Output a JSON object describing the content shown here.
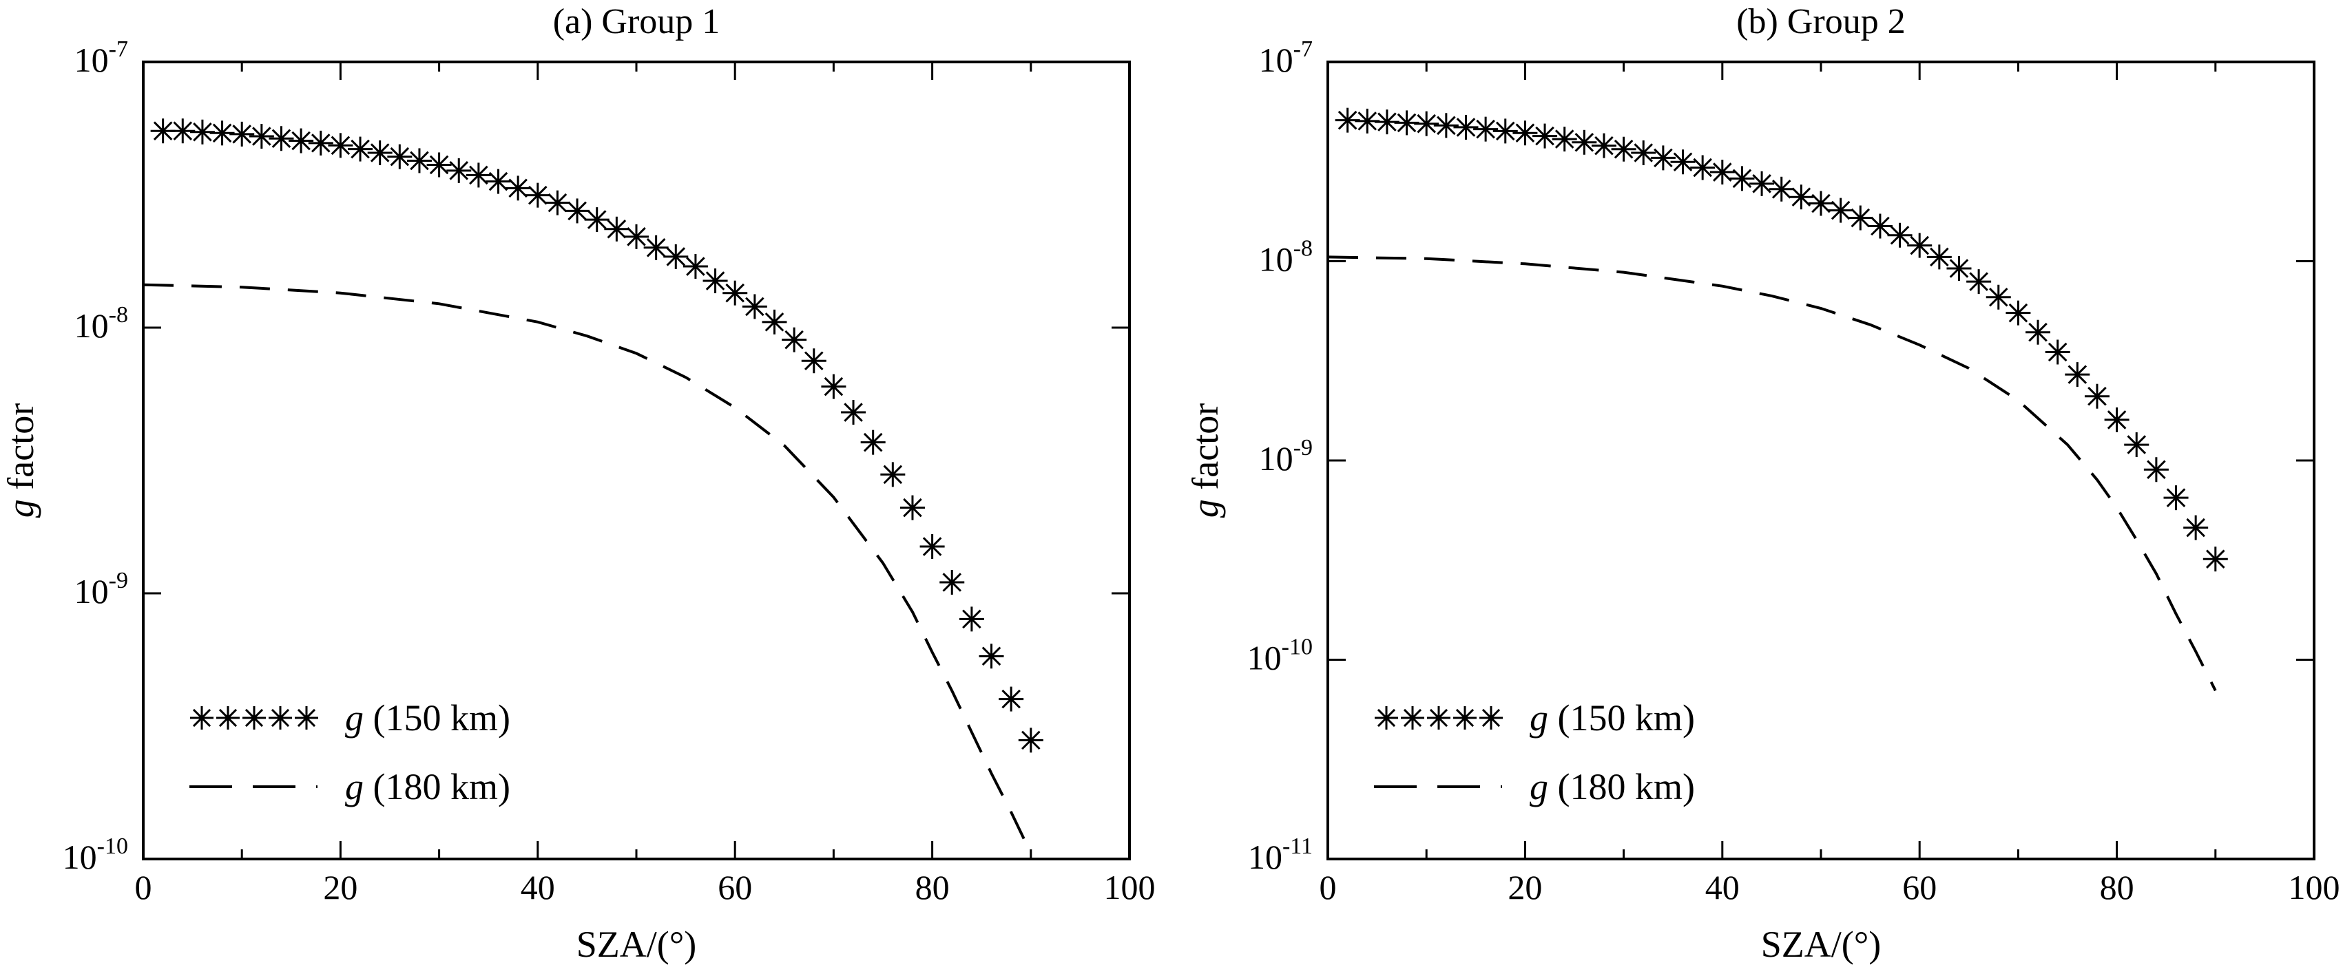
{
  "chart_data": [
    {
      "type": "scatter",
      "title": "(a) Group 1",
      "xlabel": "SZA/(°)",
      "ylabel_var": "g",
      "ylabel_rest": " factor",
      "xlim": [
        0,
        100
      ],
      "ylim": [
        1e-10,
        1e-07
      ],
      "yscale": "log",
      "grid": false,
      "legend_position": "bottom-left",
      "x_ticks": [
        "0",
        "20",
        "40",
        "60",
        "80",
        "100"
      ],
      "y_ticks": [
        {
          "base": "10",
          "exp": "-10"
        },
        {
          "base": "10",
          "exp": "-9"
        },
        {
          "base": "10",
          "exp": "-8"
        },
        {
          "base": "10",
          "exp": "-7"
        }
      ],
      "series": [
        {
          "name_var": "g",
          "name_rest": " (150 km)",
          "style": "asterisk",
          "x": [
            2,
            4,
            6,
            8,
            10,
            12,
            14,
            16,
            18,
            20,
            22,
            24,
            26,
            28,
            30,
            32,
            34,
            36,
            38,
            40,
            42,
            44,
            46,
            48,
            50,
            52,
            54,
            56,
            58,
            60,
            62,
            64,
            66,
            68,
            70,
            72,
            74,
            76,
            78,
            80,
            82,
            84,
            86,
            88,
            90
          ],
          "y": [
            5.5e-08,
            5.5e-08,
            5.45e-08,
            5.4e-08,
            5.35e-08,
            5.25e-08,
            5.15e-08,
            5.05e-08,
            4.95e-08,
            4.85e-08,
            4.7e-08,
            4.55e-08,
            4.4e-08,
            4.25e-08,
            4.1e-08,
            3.9e-08,
            3.75e-08,
            3.55e-08,
            3.35e-08,
            3.15e-08,
            2.95e-08,
            2.75e-08,
            2.55e-08,
            2.35e-08,
            2.2e-08,
            2e-08,
            1.85e-08,
            1.7e-08,
            1.5e-08,
            1.35e-08,
            1.2e-08,
            1.05e-08,
            9e-09,
            7.5e-09,
            6e-09,
            4.8e-09,
            3.7e-09,
            2.8e-09,
            2.1e-09,
            1.5e-09,
            1.1e-09,
            8e-10,
            5.8e-10,
            4e-10,
            2.8e-10
          ]
        },
        {
          "name_var": "g",
          "name_rest": " (180 km)",
          "style": "dashed",
          "x": [
            0,
            10,
            20,
            30,
            40,
            45,
            50,
            55,
            60,
            65,
            70,
            75,
            78,
            80,
            82,
            84,
            86,
            88,
            90
          ],
          "y": [
            1.45e-08,
            1.42e-08,
            1.35e-08,
            1.23e-08,
            1.05e-08,
            9.3e-09,
            8e-09,
            6.5e-09,
            5e-09,
            3.6e-09,
            2.3e-09,
            1.3e-09,
            8.5e-10,
            6e-10,
            4.3e-10,
            3e-10,
            2.1e-10,
            1.5e-10,
            1.05e-10
          ]
        }
      ]
    },
    {
      "type": "scatter",
      "title": "(b) Group 2",
      "xlabel": "SZA/(°)",
      "ylabel_var": "g",
      "ylabel_rest": " factor",
      "xlim": [
        0,
        100
      ],
      "ylim": [
        1e-11,
        1e-07
      ],
      "yscale": "log",
      "grid": false,
      "legend_position": "bottom-left",
      "x_ticks": [
        "0",
        "20",
        "40",
        "60",
        "80",
        "100"
      ],
      "y_ticks": [
        {
          "base": "10",
          "exp": "-11"
        },
        {
          "base": "10",
          "exp": "-10"
        },
        {
          "base": "10",
          "exp": "-9"
        },
        {
          "base": "10",
          "exp": "-8"
        },
        {
          "base": "10",
          "exp": "-7"
        }
      ],
      "series": [
        {
          "name_var": "g",
          "name_rest": " (150 km)",
          "style": "asterisk",
          "x": [
            2,
            4,
            6,
            8,
            10,
            12,
            14,
            16,
            18,
            20,
            22,
            24,
            26,
            28,
            30,
            32,
            34,
            36,
            38,
            40,
            42,
            44,
            46,
            48,
            50,
            52,
            54,
            56,
            58,
            60,
            62,
            64,
            66,
            68,
            70,
            72,
            74,
            76,
            78,
            80,
            82,
            84,
            86,
            88,
            90
          ],
          "y": [
            5.1e-08,
            5.05e-08,
            5e-08,
            4.95e-08,
            4.9e-08,
            4.8e-08,
            4.7e-08,
            4.6e-08,
            4.5e-08,
            4.4e-08,
            4.25e-08,
            4.1e-08,
            3.95e-08,
            3.8e-08,
            3.65e-08,
            3.5e-08,
            3.3e-08,
            3.15e-08,
            2.95e-08,
            2.8e-08,
            2.6e-08,
            2.45e-08,
            2.3e-08,
            2.1e-08,
            1.95e-08,
            1.8e-08,
            1.65e-08,
            1.5e-08,
            1.35e-08,
            1.2e-08,
            1.05e-08,
            9.2e-09,
            7.9e-09,
            6.6e-09,
            5.5e-09,
            4.4e-09,
            3.5e-09,
            2.7e-09,
            2.1e-09,
            1.6e-09,
            1.2e-09,
            9e-10,
            6.5e-10,
            4.6e-10,
            3.2e-10
          ]
        },
        {
          "name_var": "g",
          "name_rest": " (180 km)",
          "style": "dashed",
          "x": [
            0,
            10,
            20,
            30,
            40,
            45,
            50,
            55,
            60,
            65,
            70,
            75,
            78,
            80,
            82,
            84,
            86,
            88,
            90
          ],
          "y": [
            1.05e-08,
            1.03e-08,
            9.7e-09,
            8.8e-09,
            7.5e-09,
            6.7e-09,
            5.8e-09,
            4.8e-09,
            3.8e-09,
            2.9e-09,
            2e-09,
            1.2e-09,
            8e-10,
            5.8e-10,
            4e-10,
            2.7e-10,
            1.7e-10,
            1.1e-10,
            7e-11
          ]
        }
      ]
    }
  ]
}
